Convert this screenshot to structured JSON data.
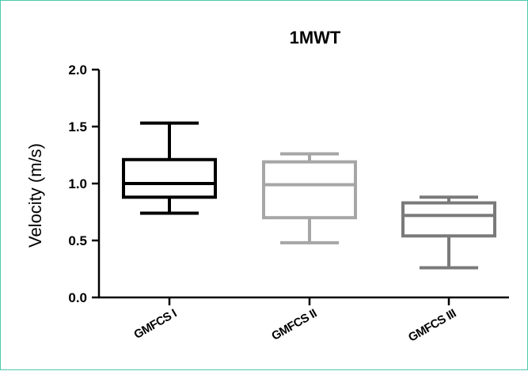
{
  "chart_data": {
    "type": "box",
    "title": "1MWT",
    "xlabel": "",
    "ylabel": "Velocity (m/s)",
    "ylim": [
      0.0,
      2.0
    ],
    "yticks": [
      "0.0",
      "0.5",
      "1.0",
      "1.5",
      "2.0"
    ],
    "grid": false,
    "categories": [
      "GMFCS I",
      "GMFCS II",
      "GMFCS III"
    ],
    "boxes": [
      {
        "category": "GMFCS I",
        "min": 0.74,
        "q1": 0.88,
        "median": 1.0,
        "q3": 1.21,
        "max": 1.53,
        "color": "#000000"
      },
      {
        "category": "GMFCS II",
        "min": 0.48,
        "q1": 0.7,
        "median": 0.99,
        "q3": 1.19,
        "max": 1.26,
        "color": "#a6a6a6"
      },
      {
        "category": "GMFCS III",
        "min": 0.26,
        "q1": 0.54,
        "median": 0.72,
        "q3": 0.83,
        "max": 0.88,
        "color": "#7a7a7a"
      }
    ]
  }
}
